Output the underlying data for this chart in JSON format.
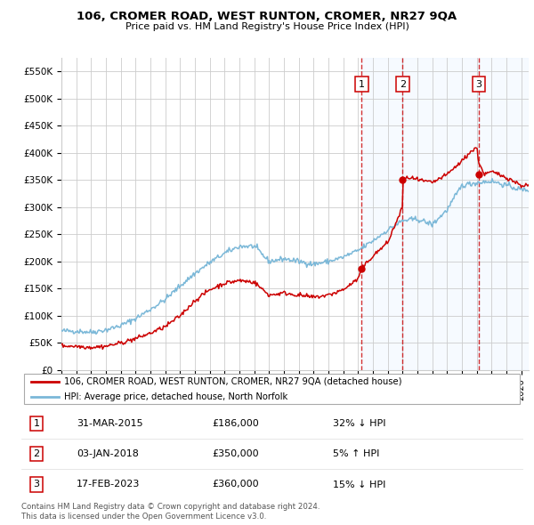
{
  "title": "106, CROMER ROAD, WEST RUNTON, CROMER, NR27 9QA",
  "subtitle": "Price paid vs. HM Land Registry's House Price Index (HPI)",
  "xlim_start": 1995.0,
  "xlim_end": 2026.5,
  "ylim": [
    0,
    575000
  ],
  "yticks": [
    0,
    50000,
    100000,
    150000,
    200000,
    250000,
    300000,
    350000,
    400000,
    450000,
    500000,
    550000
  ],
  "ytick_labels": [
    "£0",
    "£50K",
    "£100K",
    "£150K",
    "£200K",
    "£250K",
    "£300K",
    "£350K",
    "£400K",
    "£450K",
    "£500K",
    "£550K"
  ],
  "sale_dates": [
    2015.25,
    2018.01,
    2023.12
  ],
  "sale_prices": [
    186000,
    350000,
    360000
  ],
  "sale_labels": [
    "1",
    "2",
    "3"
  ],
  "hpi_color": "#7bb8d8",
  "price_color": "#cc0000",
  "vline_color": "#cc0000",
  "region_color": "#ddeeff",
  "legend_label_price": "106, CROMER ROAD, WEST RUNTON, CROMER, NR27 9QA (detached house)",
  "legend_label_hpi": "HPI: Average price, detached house, North Norfolk",
  "table_data": [
    [
      "1",
      "31-MAR-2015",
      "£186,000",
      "32% ↓ HPI"
    ],
    [
      "2",
      "03-JAN-2018",
      "£350,000",
      "5% ↑ HPI"
    ],
    [
      "3",
      "17-FEB-2023",
      "£360,000",
      "15% ↓ HPI"
    ]
  ],
  "footnote": "Contains HM Land Registry data © Crown copyright and database right 2024.\nThis data is licensed under the Open Government Licence v3.0.",
  "background_color": "#ffffff",
  "grid_color": "#cccccc"
}
